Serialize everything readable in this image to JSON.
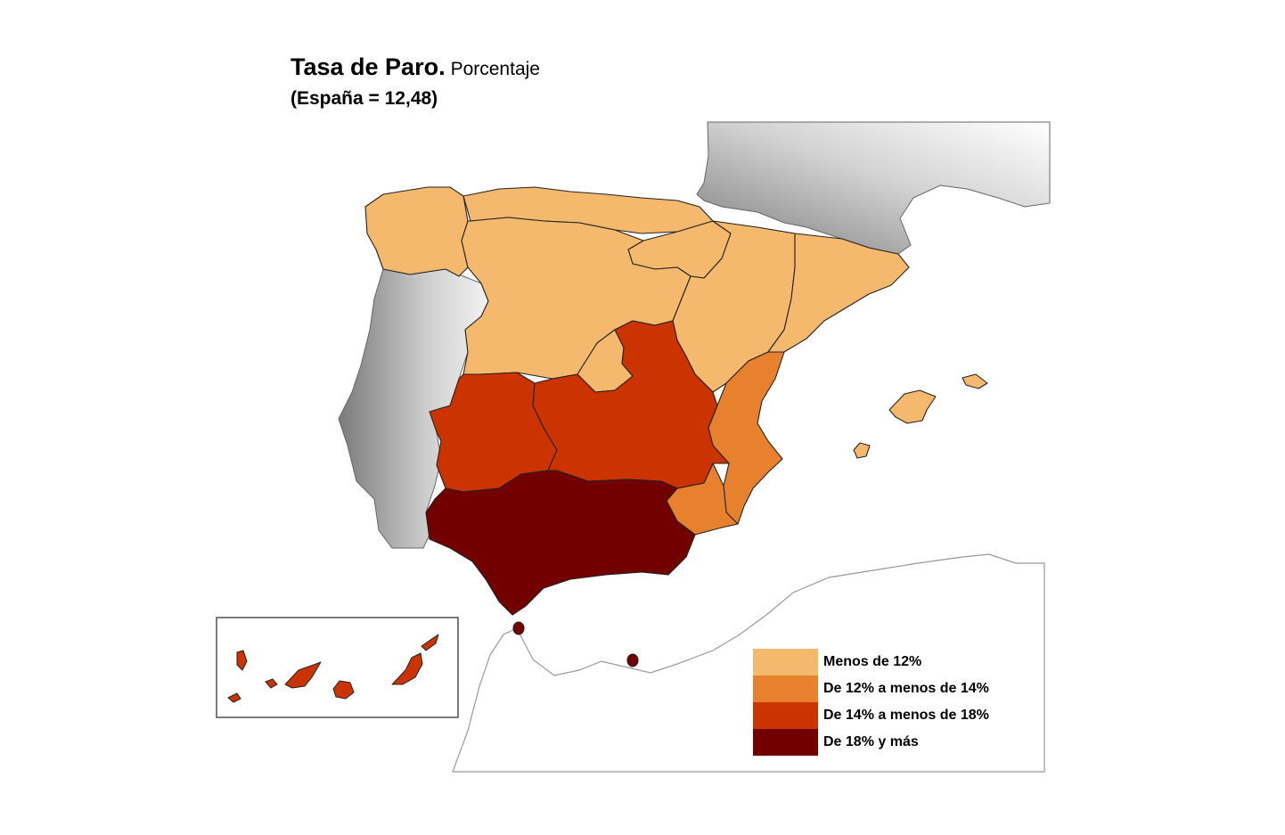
{
  "title": {
    "main": "Tasa de Paro.",
    "sub": "Porcentaje",
    "note": "(España = 12,48)"
  },
  "colors": {
    "low": "#f4b96d",
    "mid_low": "#e8812e",
    "mid_high": "#cb3300",
    "high": "#730000",
    "neighbor": "#bdbdbd",
    "border": "#222222"
  },
  "legend": [
    {
      "label": "Menos de 12%",
      "color": "#f4b96d"
    },
    {
      "label": "De 12% a menos de 14%",
      "color": "#e8812e"
    },
    {
      "label": "De 14% a menos de 18%",
      "color": "#cb3300"
    },
    {
      "label": "De 18% y más",
      "color": "#730000"
    }
  ]
}
